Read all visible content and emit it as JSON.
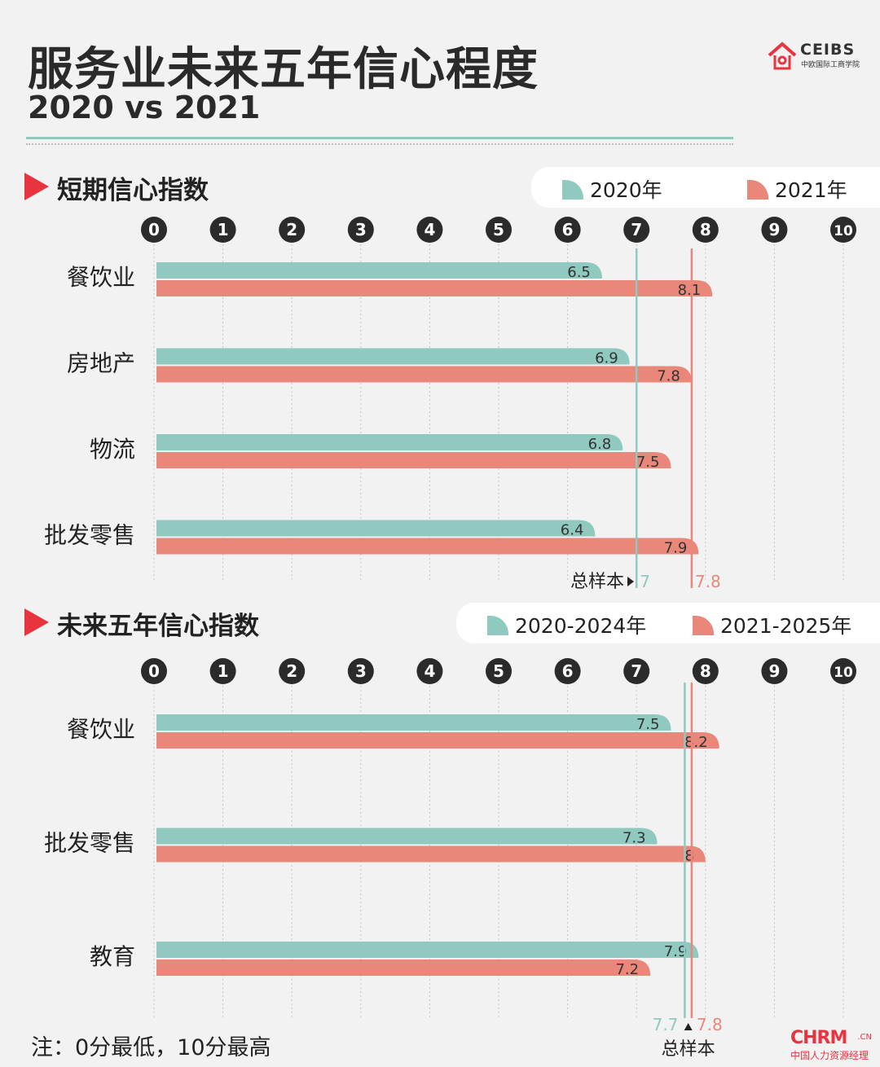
{
  "header": {
    "title": "服务业未来五年信心程度",
    "subtitle": "2020 vs 2021",
    "logo_text": "CEIBS",
    "logo_sub": "中欧国际工商学院"
  },
  "colors": {
    "teal": "#8fc9bf",
    "salmon": "#e8877a",
    "accent": "#e7343f"
  },
  "footer": {
    "note": "注：0分最低，10分最高",
    "watermark_main": "CHRM",
    "watermark_cn": ".CN",
    "watermark_sub": "中国人力资源经理"
  },
  "chart_data": [
    {
      "type": "bar",
      "title": "短期信心指数",
      "orientation": "horizontal",
      "xlim": [
        0,
        10
      ],
      "ticks": [
        "0",
        "1",
        "2",
        "3",
        "4",
        "5",
        "6",
        "7",
        "8",
        "9",
        "10"
      ],
      "categories": [
        "餐饮业",
        "房地产",
        "物流",
        "批发零售"
      ],
      "series": [
        {
          "name": "2020年",
          "values": [
            6.5,
            6.9,
            6.8,
            6.4
          ],
          "labels": [
            "6.5",
            "6.9",
            "6.8",
            "6.4"
          ]
        },
        {
          "name": "2021年",
          "values": [
            8.1,
            7.8,
            7.5,
            7.9
          ],
          "labels": [
            "8.1",
            "7.8",
            "7.5",
            "7.9"
          ]
        }
      ],
      "reference": {
        "label": "总样本",
        "values": [
          7,
          7.8
        ],
        "labels": [
          "7",
          "7.8"
        ]
      }
    },
    {
      "type": "bar",
      "title": "未来五年信心指数",
      "orientation": "horizontal",
      "xlim": [
        0,
        10
      ],
      "ticks": [
        "0",
        "1",
        "2",
        "3",
        "4",
        "5",
        "6",
        "7",
        "8",
        "9",
        "10"
      ],
      "categories": [
        "餐饮业",
        "批发零售",
        "教育"
      ],
      "series": [
        {
          "name": "2020-2024年",
          "values": [
            7.5,
            7.3,
            7.9
          ],
          "labels": [
            "7.5",
            "7.3",
            "7.9"
          ]
        },
        {
          "name": "2021-2025年",
          "values": [
            8.2,
            8,
            7.2
          ],
          "labels": [
            "8.2",
            "8",
            "7.2"
          ]
        }
      ],
      "reference": {
        "label": "总样本",
        "values": [
          7.7,
          7.8
        ],
        "labels": [
          "7.7",
          "7.8"
        ]
      }
    }
  ]
}
